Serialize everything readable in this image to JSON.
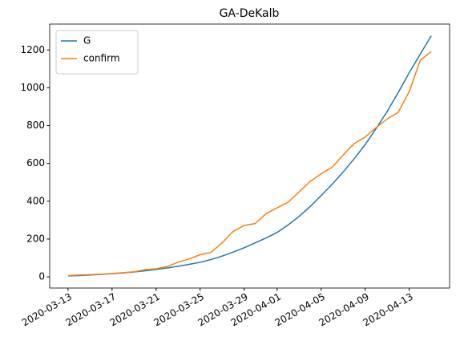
{
  "chart_data": {
    "type": "line",
    "title": "GA-DeKalb",
    "x": [
      "2020-03-13",
      "2020-03-14",
      "2020-03-15",
      "2020-03-16",
      "2020-03-17",
      "2020-03-18",
      "2020-03-19",
      "2020-03-20",
      "2020-03-21",
      "2020-03-22",
      "2020-03-23",
      "2020-03-24",
      "2020-03-25",
      "2020-03-26",
      "2020-03-27",
      "2020-03-28",
      "2020-03-29",
      "2020-03-30",
      "2020-03-31",
      "2020-04-01",
      "2020-04-02",
      "2020-04-03",
      "2020-04-04",
      "2020-04-05",
      "2020-04-06",
      "2020-04-07",
      "2020-04-08",
      "2020-04-09",
      "2020-04-10",
      "2020-04-11",
      "2020-04-12",
      "2020-04-13",
      "2020-04-14",
      "2020-04-15"
    ],
    "series": [
      {
        "name": "G",
        "color": "#1f77b4",
        "values": [
          5,
          7,
          10,
          13,
          17,
          21,
          26,
          32,
          39,
          47,
          56,
          66,
          77,
          92,
          110,
          131,
          154,
          180,
          206,
          235,
          275,
          320,
          372,
          430,
          490,
          555,
          625,
          700,
          785,
          875,
          975,
          1080,
          1178,
          1275
        ]
      },
      {
        "name": "confirm",
        "color": "#ff7f0e",
        "values": [
          7,
          10,
          12,
          14,
          18,
          22,
          27,
          38,
          43,
          55,
          77,
          95,
          117,
          130,
          180,
          240,
          272,
          282,
          335,
          365,
          395,
          450,
          505,
          545,
          580,
          645,
          705,
          740,
          790,
          835,
          870,
          980,
          1145,
          1192
        ]
      }
    ],
    "xlim": [
      "2020-03-11T08:00",
      "2020-04-16T16:00"
    ],
    "xticks": [
      "2020-03-13",
      "2020-03-17",
      "2020-03-21",
      "2020-03-25",
      "2020-03-29",
      "2020-04-01",
      "2020-04-05",
      "2020-04-09",
      "2020-04-13"
    ],
    "ylim": [
      -59,
      1337
    ],
    "yticks": [
      0,
      200,
      400,
      600,
      800,
      1000,
      1200
    ],
    "legend": "upper left"
  }
}
